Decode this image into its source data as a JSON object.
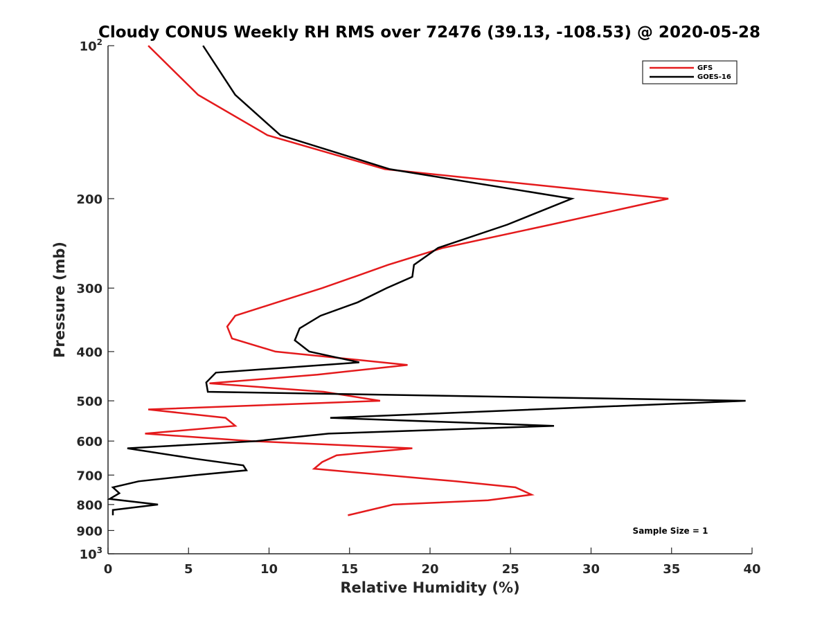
{
  "chart_data": {
    "type": "line",
    "title": "Cloudy CONUS Weekly RH RMS over 72476 (39.13, -108.53) @ 2020-05-28",
    "xlabel": "Relative Humidity (%)",
    "ylabel": "Pressure (mb)",
    "xlim": [
      0,
      40
    ],
    "ylim": [
      100,
      1000
    ],
    "y_scale": "log",
    "y_reversed": true,
    "x_ticks": [
      0,
      5,
      10,
      15,
      20,
      25,
      30,
      35,
      40
    ],
    "y_ticks": [
      {
        "value": 100,
        "base": "10",
        "exp": "2"
      },
      {
        "value": 200,
        "base": "200",
        "exp": ""
      },
      {
        "value": 300,
        "base": "300",
        "exp": ""
      },
      {
        "value": 400,
        "base": "400",
        "exp": ""
      },
      {
        "value": 500,
        "base": "500",
        "exp": ""
      },
      {
        "value": 600,
        "base": "600",
        "exp": ""
      },
      {
        "value": 700,
        "base": "700",
        "exp": ""
      },
      {
        "value": 800,
        "base": "800",
        "exp": ""
      },
      {
        "value": 900,
        "base": "900",
        "exp": ""
      },
      {
        "value": 1000,
        "base": "10",
        "exp": "3"
      }
    ],
    "grid": false,
    "legend_position": "top-right",
    "annotation": "Sample Size = 1",
    "series": [
      {
        "name": "GFS",
        "color": "#e41a1c",
        "points": [
          [
            2.5,
            100
          ],
          [
            5.6,
            125
          ],
          [
            9.9,
            150
          ],
          [
            17.2,
            175
          ],
          [
            34.8,
            200
          ],
          [
            27.5,
            225
          ],
          [
            20.8,
            250
          ],
          [
            17.4,
            270
          ],
          [
            15.3,
            285
          ],
          [
            13.3,
            300
          ],
          [
            10.5,
            320
          ],
          [
            7.9,
            340
          ],
          [
            7.4,
            357
          ],
          [
            7.7,
            377
          ],
          [
            10.4,
            400
          ],
          [
            18.6,
            425
          ],
          [
            13.0,
            444
          ],
          [
            6.3,
            462
          ],
          [
            13.4,
            480
          ],
          [
            16.9,
            500
          ],
          [
            2.5,
            520
          ],
          [
            7.3,
            540
          ],
          [
            7.9,
            560
          ],
          [
            2.3,
            580
          ],
          [
            8.9,
            600
          ],
          [
            18.9,
            620
          ],
          [
            14.2,
            640
          ],
          [
            13.3,
            660
          ],
          [
            12.8,
            680
          ],
          [
            17.2,
            700
          ],
          [
            21.6,
            720
          ],
          [
            25.3,
            740
          ],
          [
            26.3,
            765
          ],
          [
            23.6,
            785
          ],
          [
            17.7,
            800
          ],
          [
            14.9,
            840
          ]
        ]
      },
      {
        "name": "GOES-16",
        "color": "#000000",
        "points": [
          [
            5.9,
            100
          ],
          [
            7.9,
            125
          ],
          [
            10.7,
            150
          ],
          [
            17.5,
            175
          ],
          [
            28.8,
            200
          ],
          [
            24.8,
            225
          ],
          [
            20.5,
            250
          ],
          [
            19.0,
            270
          ],
          [
            18.9,
            285
          ],
          [
            17.3,
            300
          ],
          [
            15.5,
            320
          ],
          [
            13.2,
            340
          ],
          [
            11.9,
            360
          ],
          [
            11.6,
            380
          ],
          [
            12.5,
            400
          ],
          [
            15.6,
            420
          ],
          [
            6.7,
            440
          ],
          [
            6.1,
            460
          ],
          [
            6.2,
            480
          ],
          [
            39.6,
            500
          ],
          [
            13.8,
            540
          ],
          [
            27.7,
            560
          ],
          [
            13.7,
            580
          ],
          [
            9.2,
            600
          ],
          [
            1.2,
            620
          ],
          [
            5.4,
            650
          ],
          [
            8.4,
            670
          ],
          [
            8.6,
            685
          ],
          [
            5.5,
            700
          ],
          [
            1.9,
            720
          ],
          [
            0.3,
            740
          ],
          [
            0.7,
            760
          ],
          [
            0.1,
            780
          ],
          [
            3.1,
            800
          ],
          [
            0.3,
            820
          ],
          [
            0.3,
            840
          ]
        ]
      }
    ]
  }
}
